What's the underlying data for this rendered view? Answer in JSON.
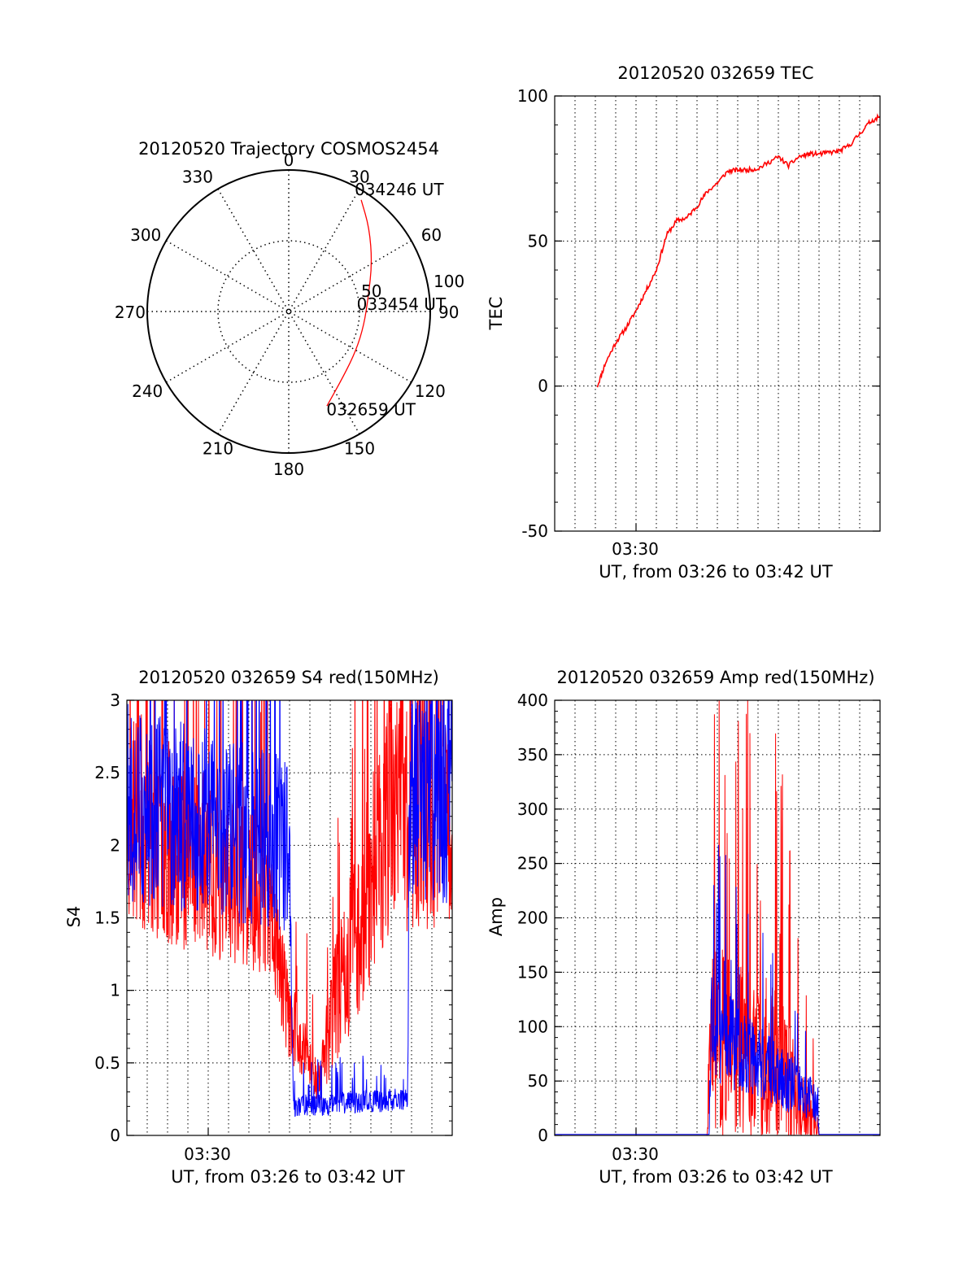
{
  "chart_data": [
    {
      "type": "polar",
      "title": "20120520 Trajectory COSMOS2454",
      "angle_labels": [
        "0",
        "30",
        "60",
        "90",
        "120",
        "150",
        "180",
        "210",
        "240",
        "270",
        "300",
        "330"
      ],
      "radius_labels": [
        "50",
        "100"
      ],
      "track_color": "#ff0000",
      "track_points": [
        {
          "az": 158,
          "el_r": 72
        },
        {
          "az": 140,
          "el_r": 60
        },
        {
          "az": 120,
          "el_r": 55
        },
        {
          "az": 100,
          "el_r": 54
        },
        {
          "az": 80,
          "el_r": 57
        },
        {
          "az": 60,
          "el_r": 68
        },
        {
          "az": 44,
          "el_r": 82
        },
        {
          "az": 33,
          "el_r": 94
        }
      ],
      "annotations": [
        {
          "text": "034246 UT",
          "az": 33,
          "el_r": 94
        },
        {
          "text": "033454 UT",
          "az": 95,
          "el_r": 54
        },
        {
          "text": "032659 UT",
          "az": 150,
          "el_r": 74
        }
      ]
    },
    {
      "type": "line",
      "title": "20120520 032659 TEC",
      "ylabel": "TEC",
      "xlabel": "UT, from 03:26 to 03:42 UT",
      "xtick_labels": [
        "03:30"
      ],
      "yticks": [
        "100",
        "50",
        "0",
        "-50"
      ],
      "ylim": [
        -50,
        100
      ],
      "xlim_minutes": [
        0,
        16
      ],
      "grid": true,
      "series": [
        {
          "color": "#ff0000",
          "x": [
            2.1,
            2.5,
            3,
            3.5,
            4,
            4.5,
            5,
            5.5,
            6,
            6.5,
            7,
            7.5,
            8,
            8.5,
            9,
            9.5,
            10,
            10.5,
            11,
            11.5,
            12,
            12.5,
            13,
            13.5,
            14,
            14.5,
            15,
            15.5,
            16
          ],
          "y": [
            0,
            8,
            15,
            20,
            26,
            33,
            40,
            52,
            57,
            58,
            62,
            67,
            70,
            74,
            74.5,
            74.5,
            75,
            77,
            79,
            76,
            79,
            80,
            80,
            80.5,
            81,
            83,
            87,
            91,
            93
          ]
        }
      ]
    },
    {
      "type": "line",
      "title": "20120520 032659 S4 red(150MHz)",
      "ylabel": "S4",
      "xlabel": "UT, from 03:26 to 03:42 UT",
      "xtick_labels": [
        "03:30"
      ],
      "yticks": [
        "3",
        "2.5",
        "2",
        "1.5",
        "1",
        "0.5",
        "0"
      ],
      "ylim": [
        0,
        3
      ],
      "xlim_minutes": [
        0,
        16
      ],
      "grid": true,
      "series": [
        {
          "color": "#ff0000",
          "noise": true,
          "segments": [
            [
              0,
              2.2,
              0.8
            ],
            [
              7,
              1.6,
              0.5
            ],
            [
              8,
              0.8,
              0.3
            ],
            [
              9.5,
              0.35,
              0.15
            ],
            [
              10,
              0.8,
              0.4
            ],
            [
              13.2,
              2.3,
              0.9
            ],
            [
              16,
              2.3,
              0.9
            ]
          ]
        },
        {
          "color": "#0000ff",
          "noise": true,
          "segments": [
            [
              0,
              2.3,
              0.7
            ],
            [
              8,
              2.0,
              0.6
            ],
            [
              8.2,
              0.2,
              0.08
            ],
            [
              13.8,
              0.25,
              0.08
            ],
            [
              13.9,
              2.4,
              0.8
            ],
            [
              16,
              2.4,
              0.8
            ]
          ]
        }
      ]
    },
    {
      "type": "line",
      "title": "20120520 032659 Amp red(150MHz)",
      "ylabel": "Amp",
      "xlabel": "UT, from 03:26 to 03:42 UT",
      "xtick_labels": [
        "03:30"
      ],
      "yticks": [
        "400",
        "350",
        "300",
        "250",
        "200",
        "150",
        "100",
        "50",
        "0"
      ],
      "ylim": [
        0,
        400
      ],
      "xlim_minutes": [
        0,
        16
      ],
      "grid": true,
      "series": [
        {
          "color": "#ff0000",
          "noise": true,
          "segments": [
            [
              0,
              0,
              0
            ],
            [
              7.5,
              0,
              0
            ],
            [
              7.6,
              90,
              90
            ],
            [
              11,
              60,
              80
            ],
            [
              12,
              30,
              40
            ],
            [
              12.9,
              10,
              15
            ],
            [
              13,
              0,
              0
            ],
            [
              16,
              0,
              0
            ]
          ]
        },
        {
          "color": "#0000ff",
          "noise": true,
          "segments": [
            [
              0,
              1,
              0
            ],
            [
              7.6,
              1,
              0
            ],
            [
              7.7,
              100,
              50
            ],
            [
              9,
              80,
              40
            ],
            [
              11,
              55,
              30
            ],
            [
              12.9,
              30,
              20
            ],
            [
              13,
              1,
              0
            ],
            [
              16,
              1,
              0
            ]
          ]
        }
      ]
    }
  ]
}
